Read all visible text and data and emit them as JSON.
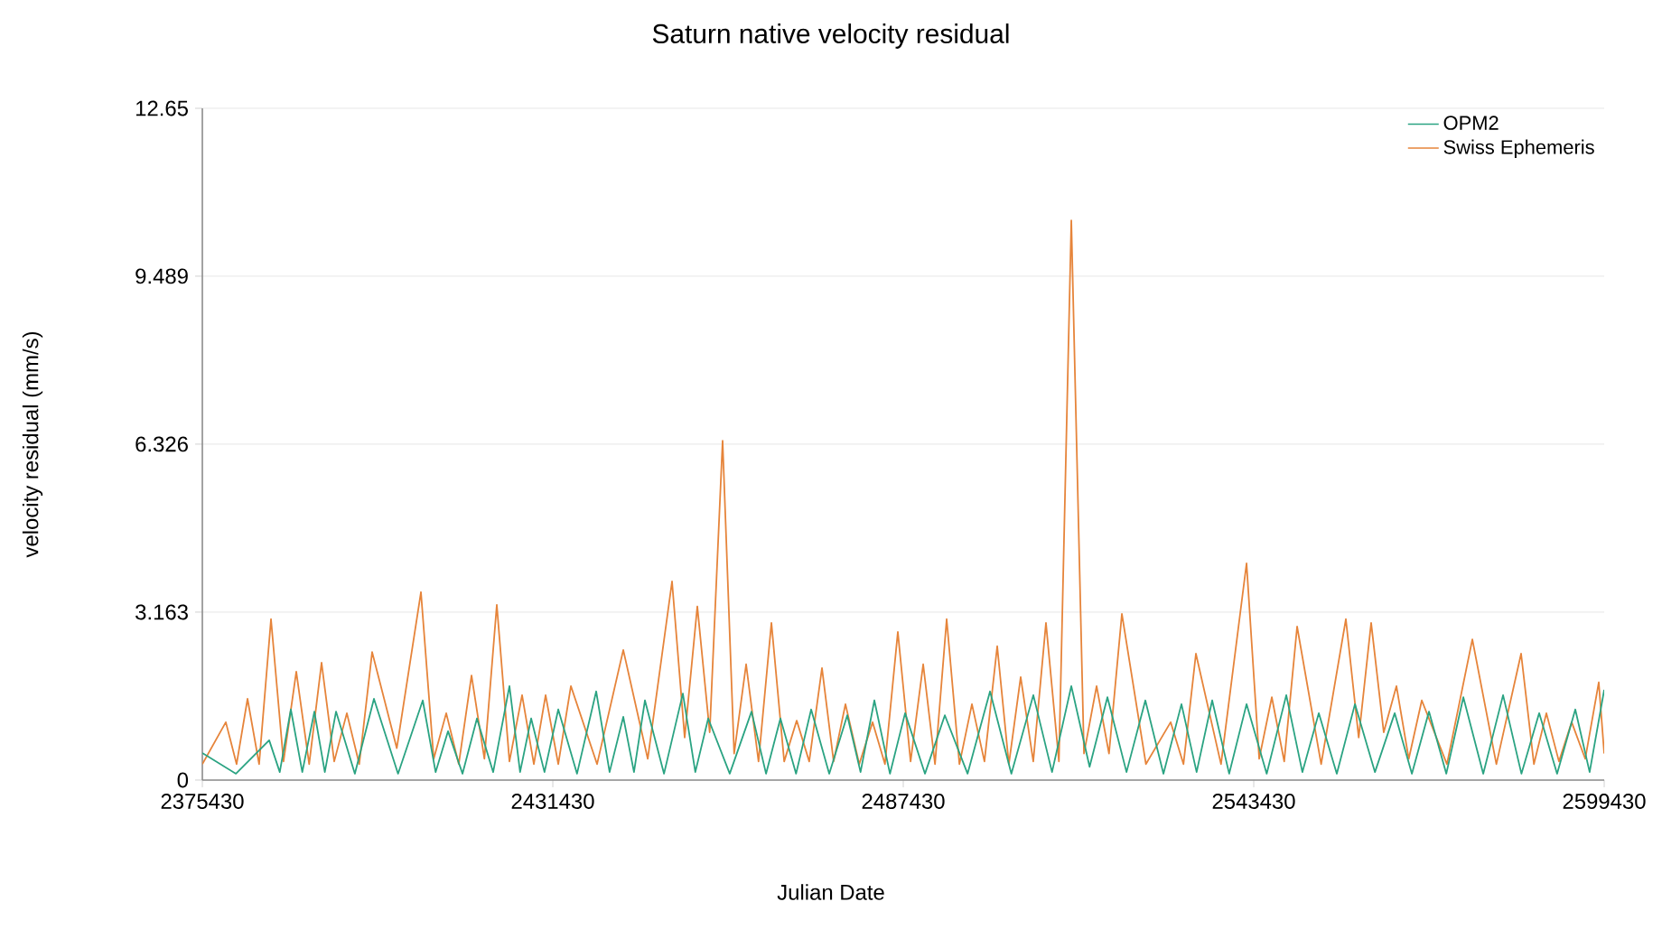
{
  "chart_data": {
    "type": "line",
    "title": "Saturn native velocity residual",
    "xlabel": "Julian Date",
    "ylabel": "velocity residual (mm/s)",
    "xlim": [
      2375430,
      2599430
    ],
    "xticks": [
      2375430,
      2431430,
      2487430,
      2543430,
      2599430
    ],
    "ylim": [
      0,
      12.65
    ],
    "yticks": [
      0,
      3.163,
      6.326,
      9.489,
      12.65
    ],
    "grid": "y",
    "legend": "top right",
    "line_style": "solid",
    "series": [
      {
        "name": "OPM2",
        "color": "#2aa382",
        "x": [
          2375430,
          2380800,
          2386110,
          2387800,
          2389570,
          2391400,
          2393330,
          2395000,
          2396790,
          2399800,
          2402850,
          2406700,
          2410650,
          2412700,
          2414690,
          2417000,
          2419310,
          2421900,
          2424500,
          2426200,
          2427970,
          2430100,
          2432300,
          2435300,
          2438360,
          2440500,
          2442690,
          2444400,
          2446150,
          2449200,
          2452210,
          2454200,
          2456260,
          2459700,
          2463180,
          2465500,
          2467800,
          2470300,
          2472710,
          2475600,
          2478480,
          2480600,
          2482810,
          2485300,
          2487720,
          2490900,
          2494070,
          2497700,
          2501290,
          2504700,
          2508210,
          2511200,
          2514280,
          2517200,
          2520050,
          2523100,
          2526110,
          2529000,
          2531880,
          2534300,
          2536790,
          2539500,
          2542280,
          2545500,
          2548630,
          2551200,
          2553820,
          2556700,
          2559600,
          2562800,
          2565950,
          2568700,
          2571430,
          2574200,
          2576920,
          2580100,
          2583270,
          2586200,
          2589040,
          2591900,
          2594810,
          2597100,
          2599430
        ],
        "values": [
          0.51,
          0.12,
          0.75,
          0.15,
          1.33,
          0.15,
          1.29,
          0.15,
          1.29,
          0.12,
          1.53,
          0.12,
          1.5,
          0.15,
          0.92,
          0.12,
          1.16,
          0.15,
          1.77,
          0.15,
          1.16,
          0.15,
          1.33,
          0.12,
          1.67,
          0.15,
          1.19,
          0.15,
          1.5,
          0.12,
          1.63,
          0.15,
          1.16,
          0.12,
          1.29,
          0.12,
          1.16,
          0.12,
          1.33,
          0.12,
          1.22,
          0.15,
          1.5,
          0.12,
          1.26,
          0.12,
          1.22,
          0.12,
          1.67,
          0.12,
          1.6,
          0.15,
          1.77,
          0.25,
          1.56,
          0.15,
          1.5,
          0.12,
          1.43,
          0.15,
          1.5,
          0.12,
          1.43,
          0.12,
          1.6,
          0.15,
          1.26,
          0.12,
          1.43,
          0.15,
          1.26,
          0.12,
          1.29,
          0.12,
          1.56,
          0.12,
          1.6,
          0.12,
          1.26,
          0.12,
          1.33,
          0.15,
          1.7
        ]
      },
      {
        "name": "Swiss Ephemeris",
        "color": "#e6843a",
        "x": [
          2375430,
          2379180,
          2380900,
          2382650,
          2384500,
          2386400,
          2388400,
          2390440,
          2392500,
          2394480,
          2396500,
          2398520,
          2400500,
          2402560,
          2406500,
          2410360,
          2412400,
          2414400,
          2416400,
          2418440,
          2420500,
          2422480,
          2424500,
          2426520,
          2428400,
          2430280,
          2432300,
          2434320,
          2438500,
          2442690,
          2446600,
          2450480,
          2452500,
          2454520,
          2456500,
          2458560,
          2460400,
          2462320,
          2464300,
          2466360,
          2468400,
          2470400,
          2472400,
          2474440,
          2476300,
          2478190,
          2480400,
          2482520,
          2484500,
          2486560,
          2488600,
          2490610,
          2492500,
          2494360,
          2496400,
          2498400,
          2500400,
          2502440,
          2504300,
          2506190,
          2508200,
          2510230,
          2512300,
          2514280,
          2516300,
          2518320,
          2520300,
          2522360,
          2526200,
          2530150,
          2532200,
          2534190,
          2538200,
          2542280,
          2544300,
          2546320,
          2548300,
          2550360,
          2554200,
          2558150,
          2560200,
          2562190,
          2564200,
          2566230,
          2568200,
          2570280,
          2574300,
          2578360,
          2582200,
          2586150,
          2588200,
          2590190,
          2592200,
          2594230,
          2596400,
          2598560,
          2599430
        ],
        "values": [
          0.3,
          1.09,
          0.3,
          1.53,
          0.3,
          3.03,
          0.35,
          2.04,
          0.3,
          2.21,
          0.35,
          1.26,
          0.3,
          2.41,
          0.6,
          3.54,
          0.4,
          1.26,
          0.3,
          1.97,
          0.4,
          3.3,
          0.35,
          1.6,
          0.3,
          1.6,
          0.3,
          1.77,
          0.3,
          2.45,
          0.4,
          3.74,
          0.8,
          3.27,
          0.9,
          6.39,
          0.5,
          2.18,
          0.35,
          2.96,
          0.35,
          1.12,
          0.35,
          2.11,
          0.35,
          1.43,
          0.3,
          1.09,
          0.3,
          2.79,
          0.35,
          2.18,
          0.3,
          3.03,
          0.3,
          1.43,
          0.35,
          2.52,
          0.3,
          1.94,
          0.35,
          2.96,
          0.35,
          10.54,
          0.5,
          1.77,
          0.5,
          3.13,
          0.3,
          1.09,
          0.3,
          2.38,
          0.3,
          4.08,
          0.4,
          1.56,
          0.35,
          2.89,
          0.3,
          3.03,
          0.8,
          2.96,
          0.9,
          1.77,
          0.4,
          1.5,
          0.3,
          2.65,
          0.3,
          2.38,
          0.3,
          1.26,
          0.35,
          1.09,
          0.4,
          1.84,
          0.5
        ]
      }
    ]
  }
}
